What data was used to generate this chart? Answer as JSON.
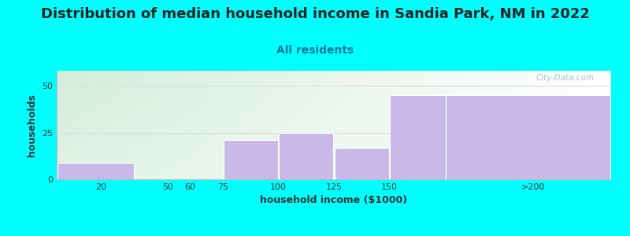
{
  "title": "Distribution of median household income in Sandia Park, NM in 2022",
  "subtitle": "All residents",
  "xlabel": "household income ($1000)",
  "ylabel": "households",
  "bar_lefts": [
    0,
    50,
    75,
    100,
    125,
    150,
    175
  ],
  "bar_widths": [
    35,
    15,
    25,
    25,
    25,
    30,
    75
  ],
  "bar_heights": [
    9,
    0,
    21,
    25,
    17,
    45,
    45
  ],
  "bar_color": "#c9b8e8",
  "bar_edgecolor": "#ffffff",
  "xtick_positions": [
    20,
    50,
    60,
    75,
    100,
    125,
    150,
    215
  ],
  "xtick_labels": [
    "20",
    "50",
    "60",
    "75",
    "100",
    "125",
    "150",
    ">200"
  ],
  "xlim": [
    0,
    250
  ],
  "ylim": [
    0,
    58
  ],
  "ytick_positions": [
    0,
    25,
    50
  ],
  "ytick_labels": [
    "0",
    "25",
    "50"
  ],
  "bg_outer": "#00ffff",
  "title_fontsize": 13,
  "subtitle_fontsize": 10,
  "subtitle_color": "#007799",
  "axis_label_fontsize": 9,
  "tick_label_fontsize": 8,
  "watermark_text": "City-Data.com",
  "watermark_color": "#a0b8cc",
  "grid_color": "#dddddd",
  "title_color": "#222222"
}
